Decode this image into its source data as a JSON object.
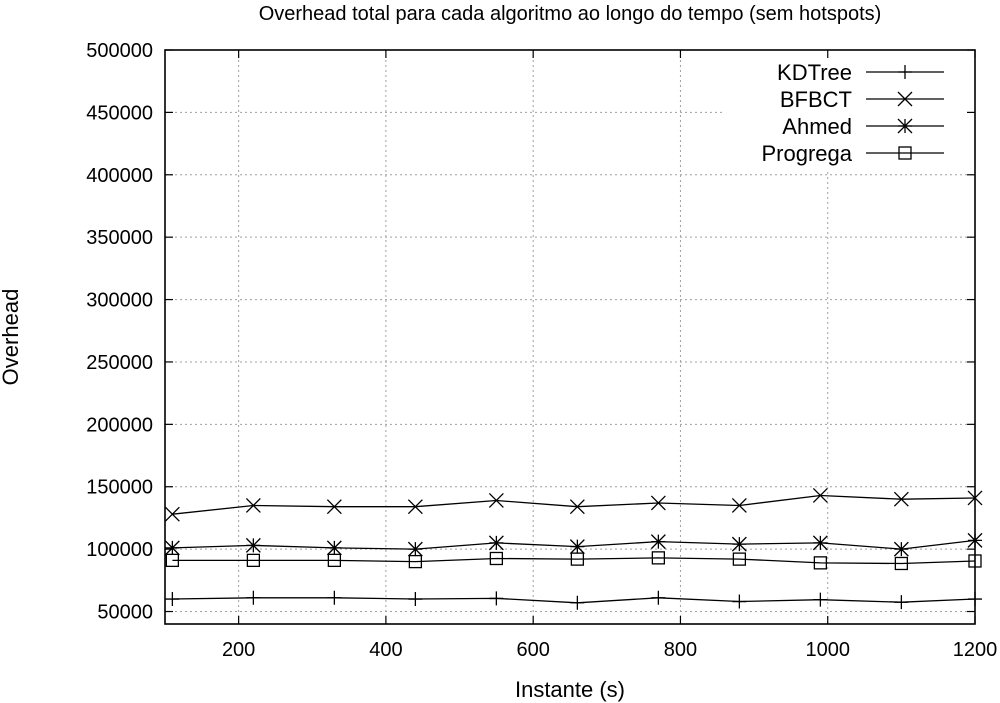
{
  "chart_data": {
    "type": "line",
    "title": "Overhead total para cada algoritmo ao longo do tempo (sem hotspots)",
    "xlabel": "Instante (s)",
    "ylabel": "Overhead",
    "xlim": [
      100,
      1200
    ],
    "ylim": [
      40000,
      500000
    ],
    "x_ticks": [
      200,
      400,
      600,
      800,
      1000,
      1200
    ],
    "y_ticks": [
      50000,
      100000,
      150000,
      200000,
      250000,
      300000,
      350000,
      400000,
      450000,
      500000
    ],
    "grid": true,
    "legend_position": "top-right",
    "x": [
      110,
      220,
      330,
      440,
      550,
      660,
      770,
      880,
      990,
      1100,
      1200
    ],
    "series": [
      {
        "name": "KDTree",
        "marker": "plus",
        "values": [
          60000,
          61000,
          61000,
          60000,
          60500,
          57000,
          61000,
          58000,
          59500,
          57500,
          60000
        ]
      },
      {
        "name": "BFBCT",
        "marker": "cross",
        "values": [
          128000,
          135000,
          134000,
          134000,
          139000,
          134000,
          137000,
          135000,
          143000,
          140000,
          141000
        ]
      },
      {
        "name": "Ahmed",
        "marker": "star",
        "values": [
          101000,
          103000,
          101000,
          100000,
          105000,
          102000,
          106000,
          104000,
          105000,
          100000,
          107000
        ]
      },
      {
        "name": "Progrega",
        "marker": "square",
        "values": [
          91000,
          91000,
          91000,
          90000,
          92500,
          92000,
          93000,
          92000,
          89000,
          88500,
          90500
        ]
      }
    ]
  }
}
